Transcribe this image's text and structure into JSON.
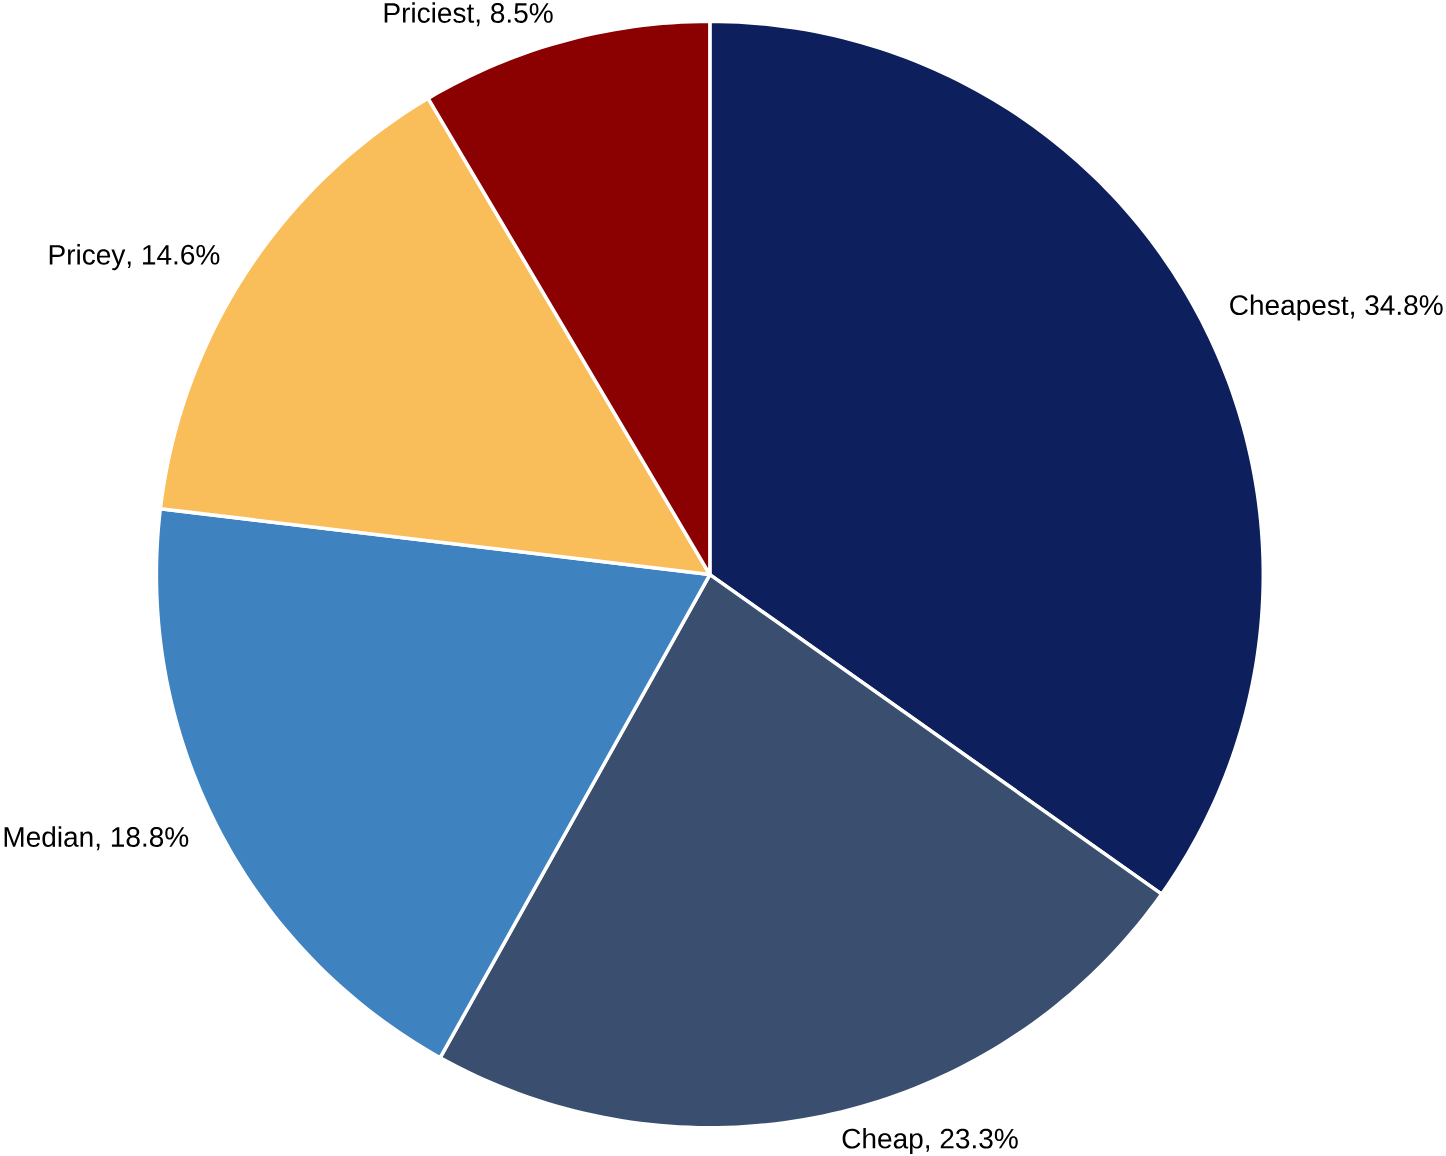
{
  "chart_data": {
    "type": "pie",
    "categories": [
      "Cheapest",
      "Cheap",
      "Median",
      "Pricey",
      "Priciest"
    ],
    "values": [
      34.8,
      23.3,
      18.8,
      14.6,
      8.5
    ],
    "value_labels": [
      ", 34.8%",
      ", 23.3%",
      ", 18.8%",
      ", 14.6%",
      ", 8.5%"
    ],
    "colors": [
      "#0d1f5c",
      "#3a4f70",
      "#3f82c0",
      "#f9bd5a",
      "#8b0000"
    ]
  }
}
